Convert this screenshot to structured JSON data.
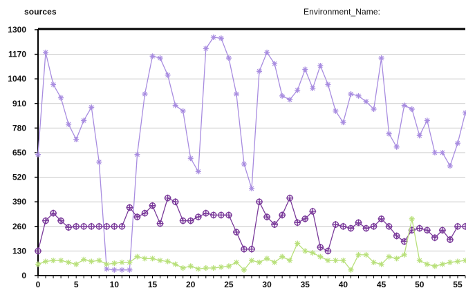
{
  "header": {
    "left_label": "sources",
    "right_label": "Environment_Name:"
  },
  "chart_data": {
    "type": "line",
    "title": "",
    "xlabel": "",
    "ylabel": "",
    "xlim": [
      0,
      56
    ],
    "ylim": [
      0,
      1300
    ],
    "grid": "horizontal",
    "legend": "none",
    "x_ticks": [
      0,
      5,
      10,
      15,
      20,
      25,
      30,
      35,
      40,
      45,
      50,
      55
    ],
    "y_ticks": [
      0,
      130,
      260,
      390,
      520,
      650,
      780,
      910,
      1040,
      1170,
      1300
    ],
    "series": [
      {
        "color": "#a88ce0",
        "marker": "star",
        "x": [
          0,
          1,
          2,
          3,
          4,
          5,
          6,
          7,
          8,
          9,
          10,
          11,
          12,
          13,
          14,
          15,
          16,
          17,
          18,
          19,
          20,
          21,
          22,
          23,
          24,
          25,
          26,
          27,
          28,
          29,
          30,
          31,
          32,
          33,
          34,
          35,
          36,
          37,
          38,
          39,
          40,
          41,
          42,
          43,
          44,
          45,
          46,
          47,
          48,
          49,
          50,
          51,
          52,
          53,
          54,
          55,
          56
        ],
        "values": [
          640,
          1180,
          1010,
          940,
          800,
          720,
          820,
          890,
          600,
          35,
          30,
          30,
          30,
          640,
          960,
          1160,
          1150,
          1060,
          900,
          870,
          620,
          550,
          1200,
          1260,
          1255,
          1150,
          960,
          590,
          460,
          1080,
          1180,
          1120,
          950,
          930,
          980,
          1090,
          990,
          1110,
          1010,
          870,
          810,
          960,
          950,
          920,
          880,
          1150,
          750,
          680,
          900,
          880,
          740,
          820,
          650,
          650,
          580,
          700,
          860
        ]
      },
      {
        "color": "#7a3a9a",
        "marker": "circle-plus",
        "x": [
          0,
          1,
          2,
          3,
          4,
          5,
          6,
          7,
          8,
          9,
          10,
          11,
          12,
          13,
          14,
          15,
          16,
          17,
          18,
          19,
          20,
          21,
          22,
          23,
          24,
          25,
          26,
          27,
          28,
          29,
          30,
          31,
          32,
          33,
          34,
          35,
          36,
          37,
          38,
          39,
          40,
          41,
          42,
          43,
          44,
          45,
          46,
          47,
          48,
          49,
          50,
          51,
          52,
          53,
          54,
          55,
          56
        ],
        "values": [
          130,
          290,
          330,
          290,
          255,
          260,
          260,
          260,
          260,
          260,
          260,
          260,
          360,
          310,
          330,
          370,
          275,
          410,
          390,
          290,
          290,
          310,
          330,
          320,
          320,
          320,
          230,
          140,
          140,
          390,
          310,
          270,
          320,
          410,
          280,
          300,
          340,
          150,
          130,
          270,
          260,
          250,
          280,
          250,
          260,
          300,
          260,
          210,
          180,
          240,
          250,
          240,
          200,
          240,
          190,
          260,
          260
        ]
      },
      {
        "color": "#b8e07a",
        "marker": "star",
        "x": [
          0,
          1,
          2,
          3,
          4,
          5,
          6,
          7,
          8,
          9,
          10,
          11,
          12,
          13,
          14,
          15,
          16,
          17,
          18,
          19,
          20,
          21,
          22,
          23,
          24,
          25,
          26,
          27,
          28,
          29,
          30,
          31,
          32,
          33,
          34,
          35,
          36,
          37,
          38,
          39,
          40,
          41,
          42,
          43,
          44,
          45,
          46,
          47,
          48,
          49,
          50,
          51,
          52,
          53,
          54,
          55,
          56
        ],
        "values": [
          60,
          75,
          80,
          80,
          70,
          60,
          85,
          75,
          80,
          60,
          65,
          70,
          70,
          100,
          90,
          90,
          80,
          75,
          60,
          40,
          50,
          35,
          40,
          40,
          45,
          50,
          70,
          30,
          80,
          70,
          90,
          70,
          100,
          80,
          170,
          130,
          120,
          100,
          80,
          80,
          80,
          30,
          110,
          110,
          70,
          60,
          100,
          90,
          110,
          300,
          80,
          60,
          50,
          60,
          70,
          75,
          80
        ]
      }
    ]
  }
}
